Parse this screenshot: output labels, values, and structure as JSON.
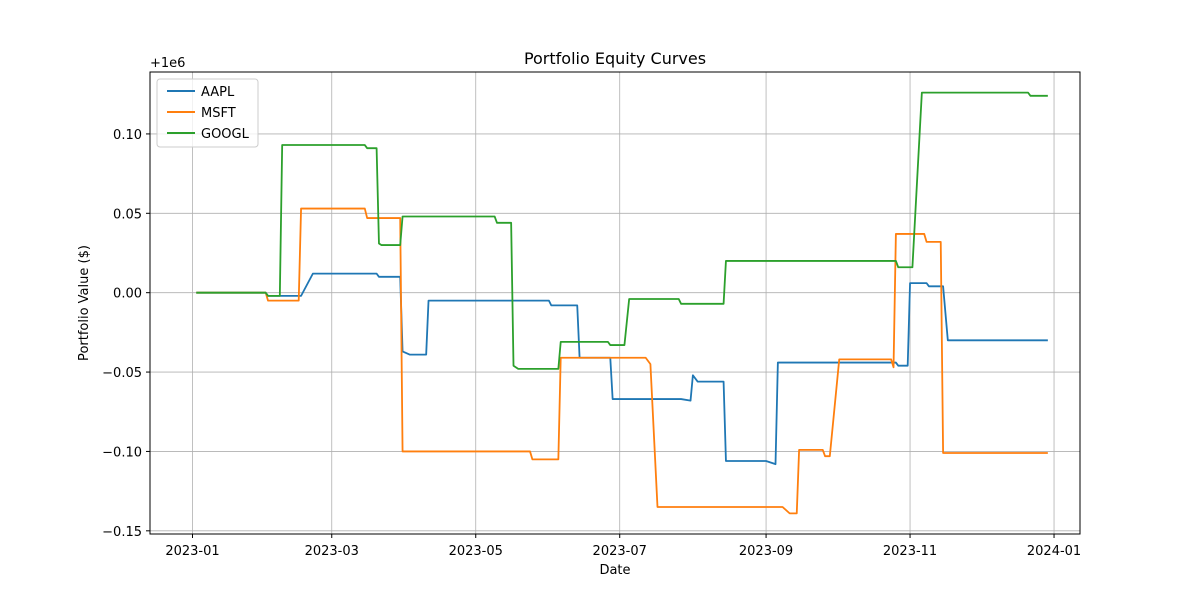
{
  "chart_data": {
    "type": "line",
    "title": "Portfolio Equity Curves",
    "xlabel": "Date",
    "ylabel": "Portfolio Value ($)",
    "offset_label": "+1e6",
    "x_ticks": [
      "2023-01",
      "2023-03",
      "2023-05",
      "2023-07",
      "2023-09",
      "2023-11",
      "2024-01"
    ],
    "x_tick_dates": [
      "2023-01-01",
      "2023-03-01",
      "2023-05-01",
      "2023-07-01",
      "2023-09-01",
      "2023-11-01",
      "2024-01-01"
    ],
    "y_ticks": [
      "0.10",
      "0.05",
      "0.00",
      "−0.05",
      "−0.10",
      "−0.15"
    ],
    "y_tick_values": [
      0.1,
      0.05,
      0.0,
      -0.05,
      -0.1,
      -0.15
    ],
    "xlim": [
      "2022-12-14",
      "2024-01-12"
    ],
    "ylim": [
      -0.152,
      0.139
    ],
    "grid": true,
    "legend_position": "top-left",
    "series": [
      {
        "name": "AAPL",
        "color": "#1f77b4",
        "points": [
          [
            "2023-01-03",
            0.0
          ],
          [
            "2023-02-01",
            0.0
          ],
          [
            "2023-02-02",
            -0.002
          ],
          [
            "2023-02-16",
            -0.002
          ],
          [
            "2023-02-21",
            0.012
          ],
          [
            "2023-03-20",
            0.012
          ],
          [
            "2023-03-21",
            0.01
          ],
          [
            "2023-03-30",
            0.01
          ],
          [
            "2023-03-31",
            -0.037
          ],
          [
            "2023-04-03",
            -0.039
          ],
          [
            "2023-04-10",
            -0.039
          ],
          [
            "2023-04-11",
            -0.005
          ],
          [
            "2023-06-01",
            -0.005
          ],
          [
            "2023-06-02",
            -0.008
          ],
          [
            "2023-06-13",
            -0.008
          ],
          [
            "2023-06-14",
            -0.041
          ],
          [
            "2023-06-27",
            -0.041
          ],
          [
            "2023-06-28",
            -0.067
          ],
          [
            "2023-07-27",
            -0.067
          ],
          [
            "2023-07-31",
            -0.068
          ],
          [
            "2023-08-01",
            -0.052
          ],
          [
            "2023-08-03",
            -0.056
          ],
          [
            "2023-08-14",
            -0.056
          ],
          [
            "2023-08-15",
            -0.106
          ],
          [
            "2023-09-01",
            -0.106
          ],
          [
            "2023-09-05",
            -0.108
          ],
          [
            "2023-09-06",
            -0.044
          ],
          [
            "2023-10-26",
            -0.044
          ],
          [
            "2023-10-27",
            -0.046
          ],
          [
            "2023-10-31",
            -0.046
          ],
          [
            "2023-11-01",
            0.006
          ],
          [
            "2023-11-08",
            0.006
          ],
          [
            "2023-11-09",
            0.004
          ],
          [
            "2023-11-15",
            0.004
          ],
          [
            "2023-11-17",
            -0.03
          ],
          [
            "2023-12-29",
            -0.03
          ]
        ]
      },
      {
        "name": "MSFT",
        "color": "#ff7f0e",
        "points": [
          [
            "2023-01-03",
            0.0
          ],
          [
            "2023-02-01",
            0.0
          ],
          [
            "2023-02-02",
            -0.005
          ],
          [
            "2023-02-15",
            -0.005
          ],
          [
            "2023-02-16",
            0.053
          ],
          [
            "2023-03-15",
            0.053
          ],
          [
            "2023-03-16",
            0.047
          ],
          [
            "2023-03-30",
            0.047
          ],
          [
            "2023-03-31",
            -0.1
          ],
          [
            "2023-05-24",
            -0.1
          ],
          [
            "2023-05-25",
            -0.105
          ],
          [
            "2023-06-05",
            -0.105
          ],
          [
            "2023-06-06",
            -0.041
          ],
          [
            "2023-07-12",
            -0.041
          ],
          [
            "2023-07-14",
            -0.045
          ],
          [
            "2023-07-17",
            -0.135
          ],
          [
            "2023-09-08",
            -0.135
          ],
          [
            "2023-09-11",
            -0.139
          ],
          [
            "2023-09-14",
            -0.139
          ],
          [
            "2023-09-15",
            -0.099
          ],
          [
            "2023-09-25",
            -0.099
          ],
          [
            "2023-09-26",
            -0.103
          ],
          [
            "2023-09-28",
            -0.103
          ],
          [
            "2023-10-02",
            -0.042
          ],
          [
            "2023-10-24",
            -0.042
          ],
          [
            "2023-10-25",
            -0.047
          ],
          [
            "2023-10-26",
            0.037
          ],
          [
            "2023-11-07",
            0.037
          ],
          [
            "2023-11-08",
            0.032
          ],
          [
            "2023-11-14",
            0.032
          ],
          [
            "2023-11-15",
            -0.101
          ],
          [
            "2023-12-29",
            -0.101
          ]
        ]
      },
      {
        "name": "GOOGL",
        "color": "#2ca02c",
        "points": [
          [
            "2023-01-03",
            0.0
          ],
          [
            "2023-02-01",
            0.0
          ],
          [
            "2023-02-02",
            -0.002
          ],
          [
            "2023-02-07",
            -0.002
          ],
          [
            "2023-02-08",
            0.093
          ],
          [
            "2023-03-15",
            0.093
          ],
          [
            "2023-03-16",
            0.091
          ],
          [
            "2023-03-20",
            0.091
          ],
          [
            "2023-03-21",
            0.031
          ],
          [
            "2023-03-22",
            0.03
          ],
          [
            "2023-03-30",
            0.03
          ],
          [
            "2023-03-31",
            0.048
          ],
          [
            "2023-05-09",
            0.048
          ],
          [
            "2023-05-10",
            0.044
          ],
          [
            "2023-05-16",
            0.044
          ],
          [
            "2023-05-17",
            -0.046
          ],
          [
            "2023-05-19",
            -0.048
          ],
          [
            "2023-06-05",
            -0.048
          ],
          [
            "2023-06-06",
            -0.031
          ],
          [
            "2023-06-26",
            -0.031
          ],
          [
            "2023-06-27",
            -0.033
          ],
          [
            "2023-07-03",
            -0.033
          ],
          [
            "2023-07-05",
            -0.004
          ],
          [
            "2023-07-26",
            -0.004
          ],
          [
            "2023-07-27",
            -0.007
          ],
          [
            "2023-08-14",
            -0.007
          ],
          [
            "2023-08-15",
            0.02
          ],
          [
            "2023-10-26",
            0.02
          ],
          [
            "2023-10-27",
            0.016
          ],
          [
            "2023-11-02",
            0.016
          ],
          [
            "2023-11-06",
            0.126
          ],
          [
            "2023-12-21",
            0.126
          ],
          [
            "2023-12-22",
            0.124
          ],
          [
            "2023-12-29",
            0.124
          ]
        ]
      }
    ]
  }
}
